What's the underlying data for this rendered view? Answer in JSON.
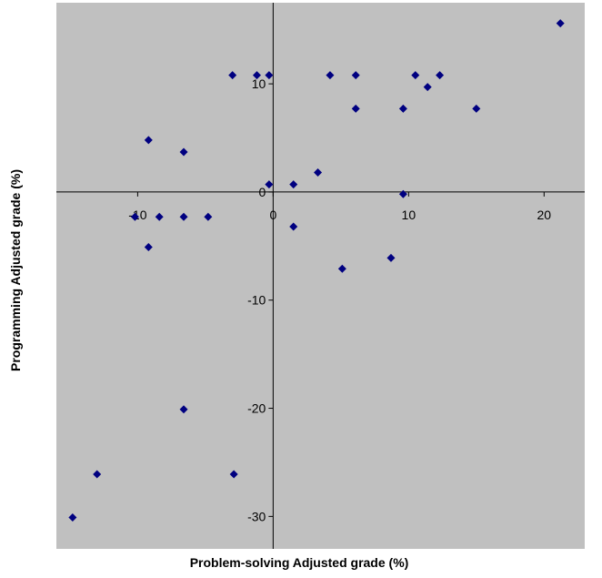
{
  "chart_data": {
    "type": "scatter",
    "title": "",
    "xlabel": "Problem-solving Adjusted grade (%)",
    "ylabel": "Programming Adjusted grade (%)",
    "xlim": [
      -16,
      23
    ],
    "ylim": [
      -33,
      17.5
    ],
    "x_ticks": [
      -10,
      0,
      10,
      20
    ],
    "y_ticks": [
      -30,
      -20,
      -10,
      0,
      10
    ],
    "x_tick_labels": [
      "-10",
      "0",
      "10",
      "20"
    ],
    "y_tick_labels": [
      "-30",
      "-20",
      "-10",
      "0",
      "10"
    ],
    "grid": false,
    "legend": "none",
    "plot_background": "#c0c0c0",
    "marker_color": "#000080",
    "marker_shape": "diamond",
    "points": [
      {
        "x": 21.2,
        "y": 15.6
      },
      {
        "x": -3,
        "y": 10.8
      },
      {
        "x": -1.2,
        "y": 10.8
      },
      {
        "x": -0.3,
        "y": 10.8
      },
      {
        "x": 4.2,
        "y": 10.8
      },
      {
        "x": 6.1,
        "y": 10.8
      },
      {
        "x": 10.5,
        "y": 10.8
      },
      {
        "x": 12.3,
        "y": 10.8
      },
      {
        "x": 11.4,
        "y": 9.7
      },
      {
        "x": 6.1,
        "y": 7.7
      },
      {
        "x": 9.6,
        "y": 7.7
      },
      {
        "x": 15,
        "y": 7.7
      },
      {
        "x": -9.2,
        "y": 4.8
      },
      {
        "x": -6.6,
        "y": 3.7
      },
      {
        "x": 3.3,
        "y": 1.8
      },
      {
        "x": -0.3,
        "y": 0.7
      },
      {
        "x": 1.5,
        "y": 0.7
      },
      {
        "x": 9.6,
        "y": -0.2
      },
      {
        "x": -10.2,
        "y": -2.3
      },
      {
        "x": -8.4,
        "y": -2.3
      },
      {
        "x": -6.6,
        "y": -2.3
      },
      {
        "x": -4.8,
        "y": -2.3
      },
      {
        "x": 1.5,
        "y": -3.2
      },
      {
        "x": -9.2,
        "y": -5.1
      },
      {
        "x": 8.7,
        "y": -6.1
      },
      {
        "x": 5.1,
        "y": -7.1
      },
      {
        "x": -6.6,
        "y": -20.1
      },
      {
        "x": -2.9,
        "y": -26.1
      },
      {
        "x": -13,
        "y": -26.1
      },
      {
        "x": -14.8,
        "y": -30.1
      }
    ]
  }
}
